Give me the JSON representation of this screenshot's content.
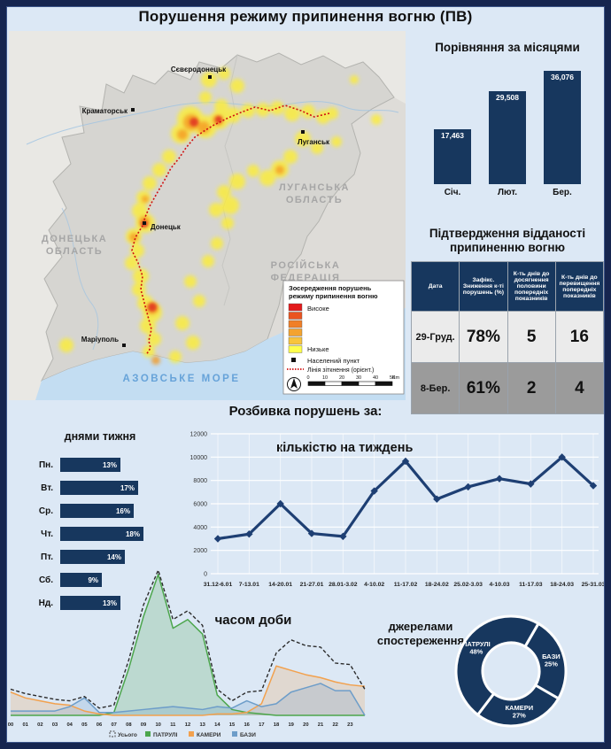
{
  "page": {
    "title": "Порушення режиму припинення вогню (ПВ)",
    "section_title": "Розбивка порушень за:"
  },
  "map": {
    "cities": [
      "Сєвєродонецьк",
      "Краматорськ",
      "Луганськ",
      "Донецьк",
      "Маріуполь"
    ],
    "regions": [
      {
        "line1": "ЛУГАНСЬКА",
        "line2": "ОБЛАСТЬ"
      },
      {
        "line1": "ДОНЕЦЬКА",
        "line2": "ОБЛАСТЬ"
      },
      {
        "line1": "РОСІЙСЬКА",
        "line2": "ФЕДЕРАЦІЯ"
      }
    ],
    "sea_label": "АЗОВСЬКЕ МОРЕ",
    "legend": {
      "title1": "Зосередження порушень",
      "title2": "режиму припинення вогню",
      "high": "Високе",
      "low": "Низьке",
      "point": "Населений пункт",
      "line": "Лінія зіткнення (орієнт.)",
      "scale_ticks": [
        "0",
        "10",
        "20",
        "30",
        "40",
        "50"
      ],
      "scale_unit": "Km",
      "heat_colors": [
        "#e31a1c",
        "#ea5420",
        "#f07f27",
        "#f4a32f",
        "#f8c43c",
        "#ffff4d"
      ]
    }
  },
  "colors": {
    "navy": "#17375e",
    "page_bg": "#dce8f5",
    "line_chart": "#1e3f73",
    "patrols_green": "#4ca64c",
    "cameras_orange": "#f2a14e",
    "bases_blue": "#6d9dc9"
  },
  "chart_data": [
    {
      "type": "bar",
      "title": "Порівняння за місяцями",
      "categories": [
        "Січ.",
        "Лют.",
        "Бер."
      ],
      "values": [
        17463,
        29508,
        36076
      ],
      "value_labels": [
        "17,463",
        "29,508",
        "36,076"
      ],
      "ylim": [
        0,
        36076
      ]
    },
    {
      "type": "table",
      "title": "Підтвердження відданості припиненню вогню",
      "columns": [
        "Дата",
        "Зафікс. Зниження к-ті порушень (%)",
        "К-ть днів до досягнення половини попередніх показників",
        "К-ть днів до перевищення попередніх показників"
      ],
      "rows": [
        [
          "29-Груд.",
          "78%",
          "5",
          "16"
        ],
        [
          "8-Бер.",
          "61%",
          "2",
          "4"
        ]
      ]
    },
    {
      "type": "bar",
      "orientation": "horizontal",
      "title": "днями тижня",
      "categories": [
        "Пн.",
        "Вт.",
        "Ср.",
        "Чт.",
        "Пт.",
        "Сб.",
        "Нд."
      ],
      "values": [
        13,
        17,
        16,
        18,
        14,
        9,
        13
      ],
      "unit": "%"
    },
    {
      "type": "line",
      "title": "кількістю на тиждень",
      "x": [
        "31.12-6.01",
        "7-13.01",
        "14-20.01",
        "21-27.01",
        "28.01-3.02",
        "4-10.02",
        "11-17.02",
        "18-24.02",
        "25.02-3.03",
        "4-10.03",
        "11-17.03",
        "18-24.03",
        "25-31.03"
      ],
      "values": [
        3000,
        3400,
        6000,
        3450,
        3200,
        7100,
        9650,
        6400,
        7450,
        8150,
        7700,
        10000,
        7550
      ],
      "ylim": [
        0,
        12000
      ],
      "ytick_step": 2000,
      "grid": true
    },
    {
      "type": "area",
      "title": "часом доби",
      "x": [
        "00",
        "01",
        "02",
        "03",
        "04",
        "05",
        "06",
        "07",
        "08",
        "09",
        "10",
        "11",
        "12",
        "13",
        "14",
        "15",
        "16",
        "17",
        "18",
        "19",
        "20",
        "21",
        "22",
        "23"
      ],
      "series": [
        {
          "name": "Усього",
          "style": "dashed",
          "color": "#2b2b2b",
          "values": [
            18,
            15,
            13,
            11,
            10,
            13,
            5,
            7,
            38,
            76,
            100,
            66,
            72,
            62,
            18,
            10,
            16,
            17,
            43,
            52,
            48,
            47,
            36,
            35,
            18
          ]
        },
        {
          "name": "ПАТРУЛІ",
          "style": "solid",
          "color": "#4ca64c",
          "values": [
            0,
            0,
            0,
            0,
            0,
            0,
            0,
            2,
            32,
            68,
            97,
            60,
            66,
            56,
            14,
            4,
            2,
            1,
            0,
            0,
            0,
            0,
            0,
            0,
            0
          ]
        },
        {
          "name": "КАМЕРИ",
          "style": "solid",
          "color": "#f2a14e",
          "values": [
            16,
            12,
            10,
            8,
            7,
            3,
            1,
            0,
            0,
            0,
            0,
            0,
            0,
            0,
            1,
            1,
            2,
            8,
            34,
            31,
            28,
            26,
            23,
            21,
            20
          ]
        },
        {
          "name": "БАЗИ",
          "style": "solid",
          "color": "#6d9dc9",
          "values": [
            3,
            3,
            3,
            3,
            6,
            12,
            2,
            2,
            3,
            4,
            5,
            6,
            5,
            4,
            6,
            5,
            10,
            6,
            8,
            16,
            19,
            22,
            17,
            17,
            0
          ]
        }
      ]
    },
    {
      "type": "pie",
      "donut": true,
      "title": "джерелами спостереження",
      "slices": [
        {
          "label": "ПАТРУЛІ",
          "pct": 48
        },
        {
          "label": "БАЗИ",
          "pct": 25
        },
        {
          "label": "КАМЕРИ",
          "pct": 27
        }
      ]
    }
  ]
}
